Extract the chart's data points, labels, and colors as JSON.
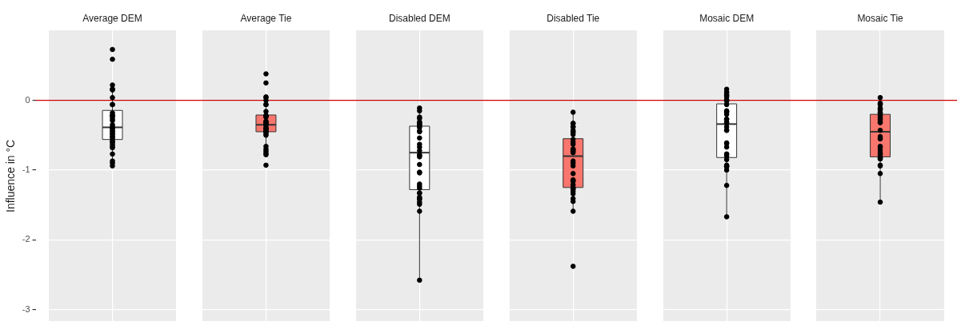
{
  "chart_data": {
    "type": "box",
    "categories": [
      "Average DEM",
      "Average Tie",
      "Disabled DEM",
      "Disabled Tie",
      "Mosaic DEM",
      "Mosaic Tie"
    ],
    "ylabel": "Influence in °C",
    "ylim": [
      -3.17,
      1.0
    ],
    "yticks": [
      0,
      -1,
      -2,
      -3
    ],
    "grid": true,
    "ref_lines": [
      {
        "axis": "y",
        "value": 0,
        "color": "#cc0000"
      }
    ],
    "series": [
      {
        "type": "box",
        "colors": [
          "#ffffff",
          "#f8766d",
          "#ffffff",
          "#f8766d",
          "#ffffff",
          "#f8766d"
        ],
        "boxes": [
          {
            "low": -0.945,
            "q1": -0.561,
            "median": -0.387,
            "q3": -0.144,
            "high": 0.214
          },
          {
            "low": -0.77,
            "q1": -0.45,
            "median": -0.35,
            "q3": -0.21,
            "high": 0.03
          },
          {
            "low": -2.57,
            "q1": -1.28,
            "median": -0.75,
            "q3": -0.37,
            "high": -0.11
          },
          {
            "low": -1.58,
            "q1": -1.25,
            "median": -0.8,
            "q3": -0.55,
            "high": -0.17
          },
          {
            "low": -1.66,
            "q1": -0.82,
            "median": -0.34,
            "q3": -0.05,
            "high": 0.16
          },
          {
            "low": -1.46,
            "q1": -0.81,
            "median": -0.45,
            "q3": -0.2,
            "high": 0.03
          }
        ]
      },
      {
        "type": "scatter",
        "color": "#000000",
        "marker": "circle",
        "x": [
          "Average DEM",
          "Average DEM",
          "Average DEM",
          "Average DEM",
          "Average DEM",
          "Average DEM",
          "Average DEM",
          "Average DEM",
          "Average DEM",
          "Average DEM",
          "Average DEM",
          "Average DEM",
          "Average DEM",
          "Average DEM",
          "Average DEM",
          "Average DEM",
          "Average DEM",
          "Average DEM",
          "Average DEM",
          "Average DEM",
          "Average DEM",
          "Average DEM",
          "Average DEM",
          "Average DEM",
          "Average DEM",
          "Average DEM",
          "Average DEM",
          "Average DEM",
          "Average DEM",
          "Average DEM",
          "Average DEM",
          "Average DEM",
          "Average DEM",
          "Average DEM",
          "Average DEM",
          "Average DEM",
          "Average Tie",
          "Average Tie",
          "Average Tie",
          "Average Tie",
          "Average Tie",
          "Average Tie",
          "Average Tie",
          "Average Tie",
          "Average Tie",
          "Average Tie",
          "Average Tie",
          "Average Tie",
          "Average Tie",
          "Average Tie",
          "Average Tie",
          "Average Tie",
          "Average Tie",
          "Average Tie",
          "Average Tie",
          "Average Tie",
          "Average Tie",
          "Average Tie",
          "Average Tie",
          "Average Tie",
          "Average Tie",
          "Average Tie",
          "Average Tie",
          "Average Tie",
          "Average Tie",
          "Average Tie",
          "Average Tie",
          "Average Tie",
          "Average Tie",
          "Disabled DEM",
          "Disabled DEM",
          "Disabled DEM",
          "Disabled DEM",
          "Disabled DEM",
          "Disabled DEM",
          "Disabled DEM",
          "Disabled DEM",
          "Disabled DEM",
          "Disabled DEM",
          "Disabled DEM",
          "Disabled DEM",
          "Disabled DEM",
          "Disabled DEM",
          "Disabled DEM",
          "Disabled DEM",
          "Disabled DEM",
          "Disabled DEM",
          "Disabled DEM",
          "Disabled DEM",
          "Disabled DEM",
          "Disabled DEM",
          "Disabled DEM",
          "Disabled DEM",
          "Disabled DEM",
          "Disabled DEM",
          "Disabled DEM",
          "Disabled DEM",
          "Disabled DEM",
          "Disabled DEM",
          "Disabled DEM",
          "Disabled DEM",
          "Disabled DEM",
          "Disabled DEM",
          "Disabled Tie",
          "Disabled Tie",
          "Disabled Tie",
          "Disabled Tie",
          "Disabled Tie",
          "Disabled Tie",
          "Disabled Tie",
          "Disabled Tie",
          "Disabled Tie",
          "Disabled Tie",
          "Disabled Tie",
          "Disabled Tie",
          "Disabled Tie",
          "Disabled Tie",
          "Disabled Tie",
          "Disabled Tie",
          "Disabled Tie",
          "Disabled Tie",
          "Disabled Tie",
          "Disabled Tie",
          "Disabled Tie",
          "Disabled Tie",
          "Disabled Tie",
          "Disabled Tie",
          "Disabled Tie",
          "Disabled Tie",
          "Disabled Tie",
          "Disabled Tie",
          "Disabled Tie",
          "Disabled Tie",
          "Disabled Tie",
          "Disabled Tie",
          "Disabled Tie",
          "Disabled Tie",
          "Disabled Tie",
          "Mosaic DEM",
          "Mosaic DEM",
          "Mosaic DEM",
          "Mosaic DEM",
          "Mosaic DEM",
          "Mosaic DEM",
          "Mosaic DEM",
          "Mosaic DEM",
          "Mosaic DEM",
          "Mosaic DEM",
          "Mosaic DEM",
          "Mosaic DEM",
          "Mosaic DEM",
          "Mosaic DEM",
          "Mosaic DEM",
          "Mosaic DEM",
          "Mosaic DEM",
          "Mosaic DEM",
          "Mosaic DEM",
          "Mosaic DEM",
          "Mosaic DEM",
          "Mosaic DEM",
          "Mosaic DEM",
          "Mosaic DEM",
          "Mosaic DEM",
          "Mosaic DEM",
          "Mosaic DEM",
          "Mosaic DEM",
          "Mosaic DEM",
          "Mosaic DEM",
          "Mosaic DEM",
          "Mosaic DEM",
          "Mosaic DEM",
          "Mosaic DEM",
          "Mosaic DEM",
          "Mosaic Tie",
          "Mosaic Tie",
          "Mosaic Tie",
          "Mosaic Tie",
          "Mosaic Tie",
          "Mosaic Tie",
          "Mosaic Tie",
          "Mosaic Tie",
          "Mosaic Tie",
          "Mosaic Tie",
          "Mosaic Tie",
          "Mosaic Tie",
          "Mosaic Tie",
          "Mosaic Tie",
          "Mosaic Tie",
          "Mosaic Tie",
          "Mosaic Tie",
          "Mosaic Tie",
          "Mosaic Tie",
          "Mosaic Tie",
          "Mosaic Tie",
          "Mosaic Tie",
          "Mosaic Tie",
          "Mosaic Tie",
          "Mosaic Tie",
          "Mosaic Tie",
          "Mosaic Tie",
          "Mosaic Tie",
          "Mosaic Tie",
          "Mosaic Tie",
          "Mosaic Tie",
          "Mosaic Tie",
          "Mosaic Tie",
          "Mosaic Tie",
          "Mosaic Tie"
        ],
        "values": [
          0.73,
          0.59,
          0.22,
          0.16,
          0.16,
          0.15,
          0.04,
          -0.06,
          -0.06,
          -0.18,
          -0.22,
          -0.22,
          -0.22,
          -0.22,
          -0.26,
          -0.29,
          -0.35,
          -0.38,
          -0.4,
          -0.41,
          -0.44,
          -0.45,
          -0.48,
          -0.49,
          -0.52,
          -0.53,
          -0.56,
          -0.59,
          -0.6,
          -0.63,
          -0.66,
          -0.68,
          -0.77,
          -0.87,
          -0.9,
          -0.94,
          0.38,
          0.25,
          0.05,
          0.04,
          0.0,
          -0.06,
          -0.06,
          -0.16,
          -0.22,
          -0.22,
          -0.23,
          -0.24,
          -0.3,
          -0.31,
          -0.32,
          -0.34,
          -0.35,
          -0.35,
          -0.39,
          -0.4,
          -0.41,
          -0.41,
          -0.44,
          -0.45,
          -0.45,
          -0.48,
          -0.5,
          -0.66,
          -0.7,
          -0.73,
          -0.76,
          -0.78,
          -0.93,
          -0.11,
          -0.15,
          -0.24,
          -0.26,
          -0.31,
          -0.32,
          -0.34,
          -0.35,
          -0.37,
          -0.39,
          -0.44,
          -0.45,
          -0.54,
          -0.63,
          -0.67,
          -0.72,
          -0.78,
          -0.79,
          -0.81,
          -0.92,
          -1.03,
          -1.04,
          -1.2,
          -1.23,
          -1.26,
          -1.33,
          -1.33,
          -1.39,
          -1.41,
          -1.42,
          -1.46,
          -1.49,
          -1.59,
          -2.58,
          -0.17,
          -0.33,
          -0.33,
          -0.38,
          -0.38,
          -0.43,
          -0.45,
          -0.46,
          -0.49,
          -0.56,
          -0.6,
          -0.63,
          -0.7,
          -0.7,
          -0.72,
          -0.73,
          -0.75,
          -0.87,
          -0.9,
          -0.94,
          -1.05,
          -1.14,
          -1.15,
          -1.16,
          -1.21,
          -1.25,
          -1.25,
          -1.27,
          -1.28,
          -1.31,
          -1.34,
          -1.41,
          -1.45,
          -1.59,
          -2.38,
          0.16,
          0.12,
          0.11,
          0.08,
          0.07,
          0.05,
          0.01,
          0.0,
          -0.01,
          -0.06,
          -0.15,
          -0.16,
          -0.17,
          -0.2,
          -0.27,
          -0.27,
          -0.31,
          -0.33,
          -0.38,
          -0.43,
          -0.43,
          -0.61,
          -0.62,
          -0.67,
          -0.77,
          -0.77,
          -0.8,
          -0.85,
          -0.93,
          -0.94,
          -0.95,
          -0.95,
          -1.0,
          -1.22,
          -1.67,
          0.04,
          -0.04,
          -0.05,
          -0.06,
          -0.11,
          -0.13,
          -0.13,
          -0.17,
          -0.18,
          -0.2,
          -0.22,
          -0.23,
          -0.25,
          -0.27,
          -0.28,
          -0.31,
          -0.32,
          -0.43,
          -0.52,
          -0.55,
          -0.55,
          -0.66,
          -0.67,
          -0.71,
          -0.75,
          -0.77,
          -0.8,
          -0.82,
          -0.83,
          -0.84,
          -0.84,
          -0.93,
          -0.94,
          -1.05,
          -1.46
        ]
      }
    ]
  }
}
